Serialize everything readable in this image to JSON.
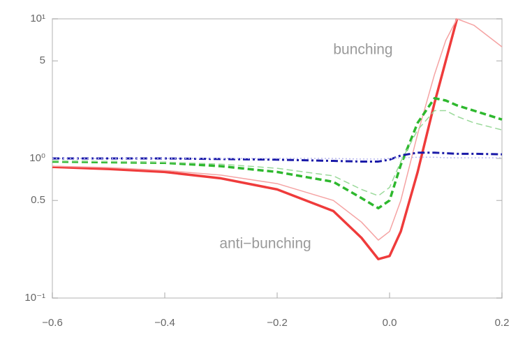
{
  "chart_data": {
    "type": "line",
    "log_y": true,
    "x": [
      -0.6,
      -0.5,
      -0.4,
      -0.3,
      -0.2,
      -0.1,
      -0.05,
      -0.02,
      0,
      0.02,
      0.05,
      0.08,
      0.1,
      0.12,
      0.15,
      0.2
    ],
    "series": [
      {
        "color": "#ef3b3b",
        "linestyle": "solid",
        "linewidth": 3.5,
        "values": [
          0.87,
          0.84,
          0.8,
          0.72,
          0.6,
          0.42,
          0.27,
          0.19,
          0.2,
          0.3,
          0.8,
          2.5,
          5,
          10,
          null,
          null
        ]
      },
      {
        "color": "#f5a3a3",
        "linestyle": "solid",
        "linewidth": 1.5,
        "values": [
          0.88,
          0.86,
          0.82,
          0.76,
          0.66,
          0.5,
          0.35,
          0.26,
          0.3,
          0.5,
          1.5,
          4,
          7,
          10,
          9,
          6.3
        ]
      },
      {
        "color": "#2eb82e",
        "linestyle": "dashed",
        "linewidth": 3.5,
        "values": [
          0.95,
          0.94,
          0.93,
          0.88,
          0.8,
          0.68,
          0.52,
          0.44,
          0.5,
          0.9,
          1.8,
          2.7,
          2.6,
          2.4,
          2.2,
          1.9
        ]
      },
      {
        "color": "#9ad99a",
        "linestyle": "dashed",
        "linewidth": 1.5,
        "values": [
          0.96,
          0.95,
          0.94,
          0.91,
          0.85,
          0.75,
          0.6,
          0.54,
          0.62,
          0.95,
          1.6,
          2.2,
          2.2,
          2.0,
          1.8,
          1.6
        ]
      },
      {
        "color": "#1a1aa8",
        "linestyle": "dashdot",
        "linewidth": 3,
        "values": [
          1.0,
          1.0,
          1.0,
          0.99,
          0.98,
          0.96,
          0.95,
          0.95,
          0.98,
          1.05,
          1.1,
          1.1,
          1.09,
          1.08,
          1.08,
          1.07
        ]
      },
      {
        "color": "#b8b8f0",
        "linestyle": "dotted",
        "linewidth": 1.5,
        "values": [
          1.0,
          1.0,
          1.0,
          1.0,
          1.0,
          1.0,
          0.99,
          0.99,
          1.0,
          1.01,
          1.02,
          1.02,
          1.01,
          1.01,
          1.01,
          1.01
        ]
      }
    ],
    "xlim": [
      -0.6,
      0.2
    ],
    "xticks": [
      {
        "value": -0.6,
        "label": "−0.6"
      },
      {
        "value": -0.4,
        "label": "−0.4"
      },
      {
        "value": -0.2,
        "label": "−0.2"
      },
      {
        "value": 0,
        "label": "0.0"
      },
      0.2
    ],
    "ylim": [
      0.1,
      10
    ],
    "yticks": [
      {
        "value": 0.1,
        "label": "10⁻¹"
      },
      0.5,
      {
        "value": 1,
        "label": "10⁰"
      },
      5,
      {
        "value": 10,
        "label": "10¹"
      }
    ],
    "annotations": [
      "bunching",
      "anti−bunching"
    ]
  }
}
